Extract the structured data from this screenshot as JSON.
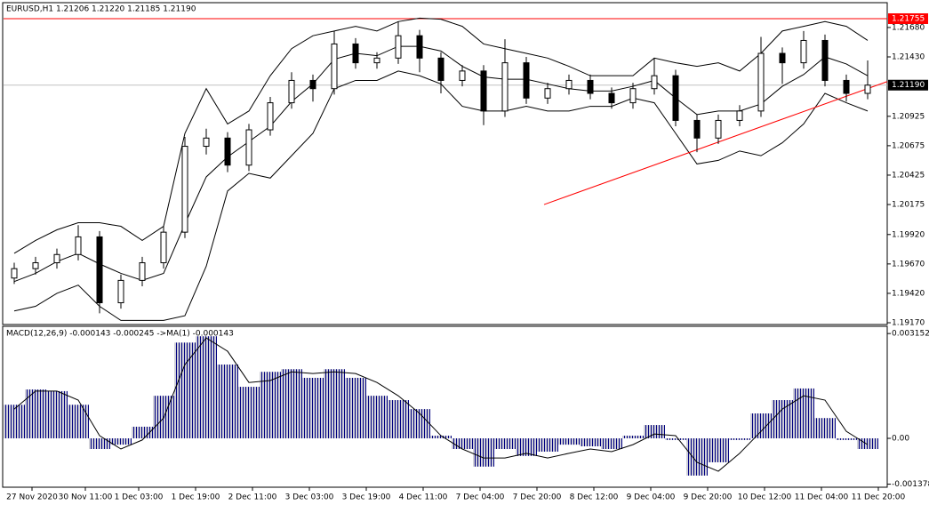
{
  "chart_data": [
    {
      "type": "candlestick",
      "title": "EURUSD,H1  1.21206 1.21220 1.21185 1.21190",
      "x": [
        3,
        9,
        15,
        21,
        27,
        33,
        39,
        45,
        51,
        57,
        63,
        69,
        75,
        81,
        87,
        93,
        99,
        105,
        111,
        117,
        123,
        129,
        135,
        141,
        147,
        153,
        159,
        165,
        171,
        177,
        183,
        189,
        195,
        201,
        207,
        213,
        219,
        225,
        231,
        237,
        243
      ],
      "open": [
        1.1955,
        1.1963,
        1.1968,
        1.1975,
        1.199,
        1.1934,
        1.1953,
        1.1968,
        1.1994,
        1.2067,
        1.2074,
        1.2051,
        1.2081,
        1.2104,
        1.2123,
        1.2116,
        1.2154,
        1.2138,
        1.2142,
        1.2161,
        1.2142,
        1.2123,
        1.2131,
        1.2097,
        1.2138,
        1.2108,
        1.2116,
        1.2123,
        1.2112,
        1.2104,
        1.2116,
        1.2127,
        1.2089,
        1.2074,
        1.2089,
        1.2097,
        1.2146,
        1.2138,
        1.2157,
        1.2123,
        1.2112
      ],
      "high": [
        1.1968,
        1.1973,
        1.198,
        1.2,
        1.1995,
        1.1958,
        1.1973,
        1.1999,
        1.2075,
        1.2082,
        1.2079,
        1.2086,
        1.2109,
        1.213,
        1.2128,
        1.2165,
        1.2159,
        1.2147,
        1.2173,
        1.2166,
        1.2147,
        1.2136,
        1.2136,
        1.2158,
        1.2143,
        1.2121,
        1.2128,
        1.2128,
        1.2117,
        1.2121,
        1.2142,
        1.2132,
        1.2094,
        1.2094,
        1.2102,
        1.216,
        1.2151,
        1.2165,
        1.2162,
        1.2128,
        1.214
      ],
      "low": [
        1.195,
        1.1958,
        1.1963,
        1.197,
        1.1925,
        1.1929,
        1.1948,
        1.1963,
        1.1989,
        1.206,
        1.2045,
        1.2046,
        1.2076,
        1.2099,
        1.2105,
        1.2111,
        1.2133,
        1.2133,
        1.2137,
        1.213,
        1.2112,
        1.2118,
        1.2085,
        1.2092,
        1.2103,
        1.2103,
        1.2111,
        1.2107,
        1.2099,
        1.2099,
        1.2111,
        1.2084,
        1.2062,
        1.2069,
        1.2084,
        1.2092,
        1.212,
        1.2133,
        1.2118,
        1.2105,
        1.2107
      ],
      "close": [
        1.1963,
        1.1968,
        1.1975,
        1.199,
        1.1934,
        1.1953,
        1.1968,
        1.1994,
        1.2067,
        1.2074,
        1.2051,
        1.2081,
        1.2104,
        1.2123,
        1.2116,
        1.2154,
        1.2138,
        1.2142,
        1.2161,
        1.2142,
        1.2123,
        1.2131,
        1.2097,
        1.2138,
        1.2108,
        1.2116,
        1.2123,
        1.2112,
        1.2104,
        1.2116,
        1.2127,
        1.2089,
        1.2074,
        1.2089,
        1.2097,
        1.2146,
        1.2138,
        1.2157,
        1.2123,
        1.2112,
        1.2119
      ],
      "series": [
        {
          "color": "#000000",
          "values": [
            1.1976,
            1.1987,
            1.1996,
            1.2002,
            1.2002,
            1.1999,
            1.1987,
            1.1999,
            1.2078,
            1.2116,
            1.2086,
            1.2097,
            1.2127,
            1.215,
            1.2161,
            1.2165,
            1.2169,
            1.2165,
            1.2173,
            1.2176,
            1.2175,
            1.2169,
            1.2154,
            1.215,
            1.2146,
            1.2142,
            1.2135,
            1.2127,
            1.2127,
            1.2127,
            1.2142,
            1.2138,
            1.2135,
            1.2138,
            1.2131,
            1.2146,
            1.2165,
            1.2169,
            1.2173,
            1.2169,
            1.2157
          ]
        },
        {
          "color": "#000000",
          "values": [
            1.1952,
            1.1959,
            1.1969,
            1.1976,
            1.1967,
            1.1959,
            1.1953,
            1.1959,
            1.2001,
            1.2041,
            1.2058,
            1.2071,
            1.2084,
            1.2105,
            1.212,
            1.2141,
            1.2146,
            1.2144,
            1.2152,
            1.2152,
            1.2148,
            1.2135,
            1.2126,
            1.2124,
            1.2124,
            1.212,
            1.2116,
            1.2114,
            1.2114,
            1.2118,
            1.2123,
            1.2108,
            1.2094,
            1.2097,
            1.2097,
            1.2103,
            1.2118,
            1.2128,
            1.2143,
            1.2137,
            1.2127
          ]
        },
        {
          "color": "#000000",
          "values": [
            1.1927,
            1.1931,
            1.1942,
            1.1949,
            1.1931,
            1.1919,
            1.1919,
            1.1919,
            1.1923,
            1.1965,
            1.2029,
            1.2044,
            1.204,
            1.2059,
            1.2078,
            1.2116,
            1.2123,
            1.2123,
            1.2131,
            1.2127,
            1.212,
            1.2101,
            1.2097,
            1.2097,
            1.2101,
            1.2097,
            1.2097,
            1.2101,
            1.2101,
            1.2108,
            1.2104,
            1.2078,
            1.2052,
            1.2055,
            1.2063,
            1.2059,
            1.207,
            1.2086,
            1.2112,
            1.2104,
            1.2097
          ]
        }
      ],
      "xlim": [
        0,
        248.5
      ],
      "ylim": [
        1.19155,
        1.21891
      ],
      "yticks": [
        {
          "value": 1.2168,
          "label": "1.21680"
        },
        {
          "value": 1.2143,
          "label": "1.21430"
        },
        1.20925,
        1.20675,
        1.20425,
        1.20175,
        {
          "value": 1.1992,
          "label": "1.19920"
        },
        {
          "value": 1.1967,
          "label": "1.19670"
        },
        {
          "value": 1.1942,
          "label": "1.19420"
        },
        {
          "value": 1.1917,
          "label": "1.19170"
        }
      ],
      "level": {
        "value": 1.21755,
        "color": "#ff0000"
      },
      "current_price": {
        "value": 1.2119,
        "label": "1.21190",
        "color": "#c0c0c0"
      },
      "trendline": {
        "x": [
          152,
          248.5
        ],
        "y": [
          1.20175,
          1.2122
        ],
        "color": "#ff0000"
      }
    },
    {
      "type": "macd",
      "title": "MACD(12,26,9) -0.000143 -0.000245  ->MA(1) -0.000143",
      "x": [
        3,
        9,
        15,
        21,
        27,
        33,
        39,
        45,
        51,
        57,
        63,
        69,
        75,
        81,
        87,
        93,
        99,
        105,
        111,
        117,
        123,
        129,
        135,
        141,
        147,
        153,
        159,
        165,
        171,
        177,
        183,
        189,
        195,
        201,
        207,
        213,
        219,
        225,
        231,
        237,
        243
      ],
      "series": [
        {
          "type": "bar",
          "color": "#000080",
          "values": [
            0.00101,
            0.00147,
            0.00142,
            0.00101,
            -0.00032,
            -0.00019,
            0.00035,
            0.00128,
            0.00288,
            0.00307,
            0.00222,
            0.00155,
            0.002,
            0.00208,
            0.00182,
            0.00208,
            0.00182,
            0.00128,
            0.00115,
            0.00088,
            8e-05,
            -0.00032,
            -0.00085,
            -0.00032,
            -0.00053,
            -0.0004,
            -0.00019,
            -0.00024,
            -0.00032,
            8e-05,
            0.0004,
            -5e-05,
            -0.00112,
            -0.00072,
            -5e-05,
            0.00075,
            0.00115,
            0.0015,
            0.00061,
            -5e-05,
            -0.00032
          ]
        },
        {
          "type": "line",
          "color": "#000000",
          "values": [
            0.00088,
            0.00142,
            0.00142,
            0.00115,
            8e-05,
            -0.00032,
            -5e-05,
            0.00061,
            0.00222,
            0.00302,
            0.00262,
            0.00168,
            0.00174,
            0.002,
            0.00195,
            0.002,
            0.00195,
            0.00168,
            0.00128,
            0.00075,
            8e-05,
            -0.00032,
            -0.00059,
            -0.00059,
            -0.00045,
            -0.00059,
            -0.00045,
            -0.00032,
            -0.0004,
            -0.00019,
            0.00013,
            8e-05,
            -0.00072,
            -0.00099,
            -0.00045,
            0.00021,
            0.00088,
            0.00128,
            0.00115,
            0.00021,
            -0.00019
          ]
        }
      ],
      "xlim": [
        0,
        248.5
      ],
      "ylim": [
        -0.00147,
        0.00337
      ],
      "yticks": [
        0.003152,
        {
          "value": 0,
          "label": "0.00"
        },
        -0.001378
      ],
      "xticks": [
        {
          "value": 8,
          "label": "27 Nov 2020"
        },
        {
          "value": 23,
          "label": "30 Nov 11:00"
        },
        {
          "value": 38,
          "label": "1 Dec 03:00"
        },
        {
          "value": 54,
          "label": "1 Dec 19:00"
        },
        {
          "value": 70,
          "label": "2 Dec 11:00"
        },
        {
          "value": 86,
          "label": "3 Dec 03:00"
        },
        {
          "value": 102,
          "label": "3 Dec 19:00"
        },
        {
          "value": 118,
          "label": "4 Dec 11:00"
        },
        {
          "value": 134,
          "label": "7 Dec 04:00"
        },
        {
          "value": 150,
          "label": "7 Dec 20:00"
        },
        {
          "value": 166,
          "label": "8 Dec 12:00"
        },
        {
          "value": 182,
          "label": "9 Dec 04:00"
        },
        {
          "value": 198,
          "label": "9 Dec 20:00"
        },
        {
          "value": 214,
          "label": "10 Dec 12:00"
        },
        {
          "value": 230,
          "label": "11 Dec 04:00"
        },
        {
          "value": 246,
          "label": "11 Dec 20:00"
        }
      ]
    }
  ]
}
